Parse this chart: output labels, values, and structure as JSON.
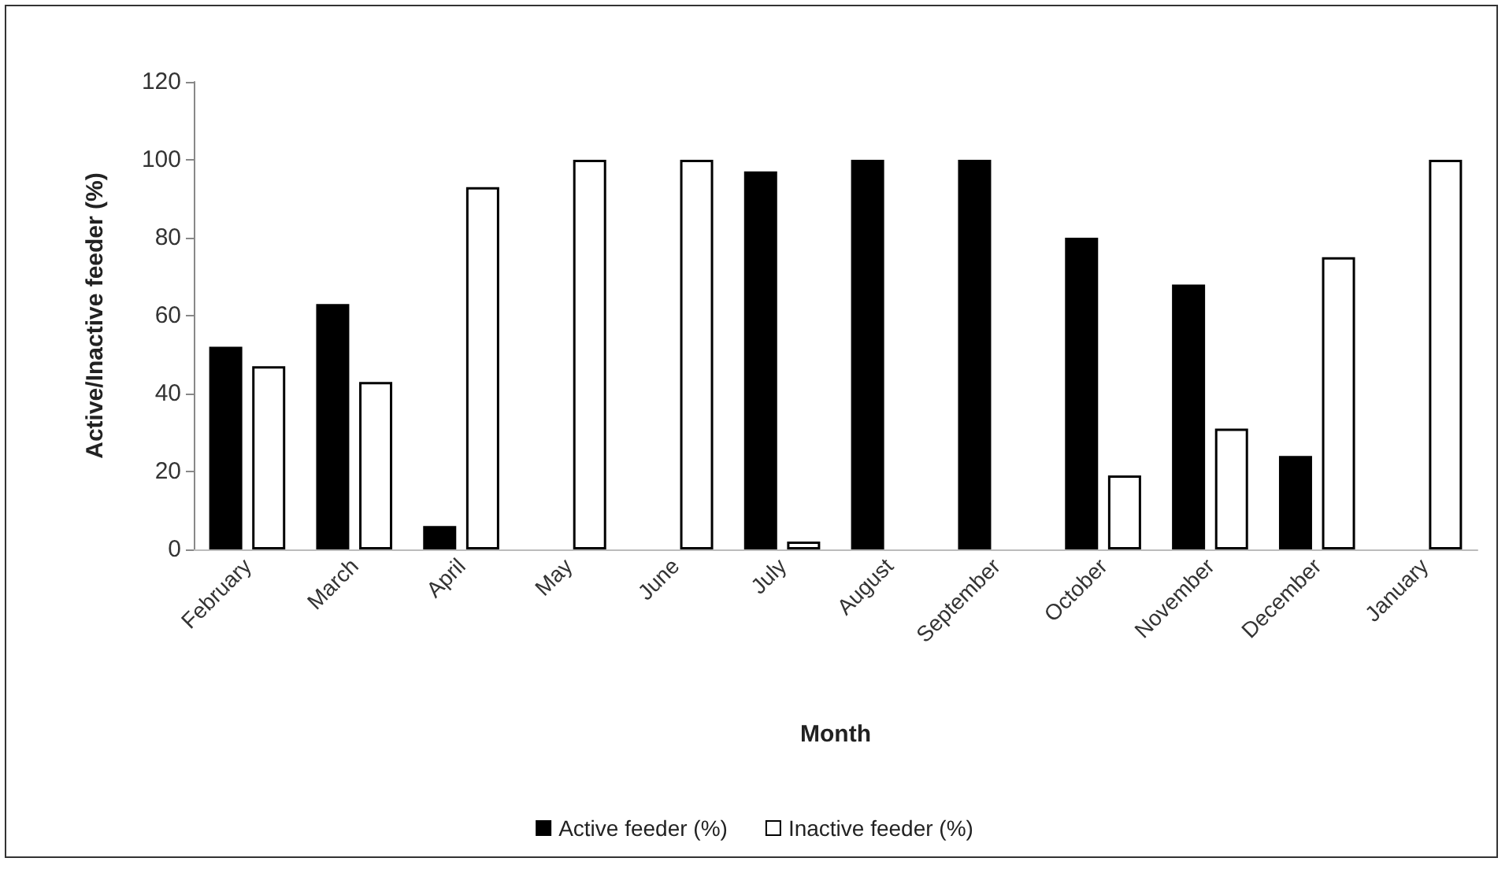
{
  "chart_data": {
    "type": "bar",
    "xlabel": "Month",
    "ylabel": "Active/Inactive feeder (%)",
    "categories": [
      "February",
      "March",
      "April",
      "May",
      "June",
      "July",
      "August",
      "September",
      "October",
      "November",
      "December",
      "January"
    ],
    "series": [
      {
        "name": "Active feeder (%)",
        "color": "#000000",
        "values": [
          52,
          63,
          6,
          0,
          0,
          97,
          100,
          100,
          80,
          68,
          24,
          0
        ]
      },
      {
        "name": "Inactive feeder (%)",
        "color": "#ffffff",
        "values": [
          47,
          43,
          93,
          100,
          100,
          2,
          0,
          0,
          19,
          31,
          75,
          100
        ]
      }
    ],
    "ylim": [
      0,
      120
    ],
    "yticks": [
      0,
      20,
      40,
      60,
      80,
      100,
      120
    ],
    "grid": false,
    "legend": "bottom"
  }
}
